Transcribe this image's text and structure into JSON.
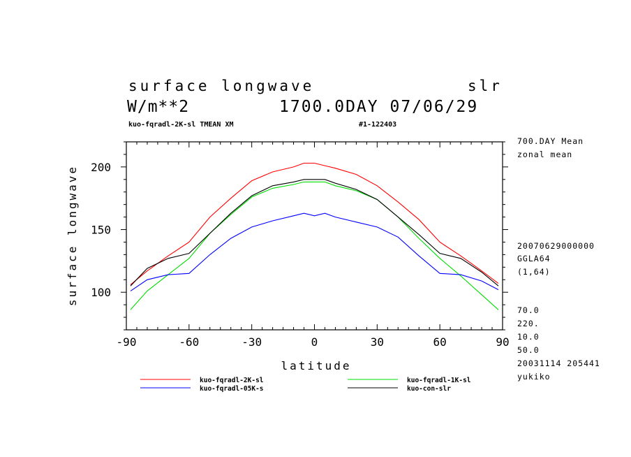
{
  "header": {
    "title_left": "surface longwave",
    "title_right": "slr",
    "units": "W/m**2",
    "date_line": "1700.0DAY 07/06/29",
    "subtitle_left": "kuo-fqradl-2K-sl TMEAN XM",
    "subtitle_right": "#1-122403"
  },
  "side_info": {
    "line1": "700.DAY Mean",
    "line2": "zonal mean",
    "line3": "20070629000000",
    "line4": "GGLA64",
    "line5": "(1,64)",
    "line6": "70.0",
    "line7": "220.",
    "line8": "10.0",
    "line9": "50.0",
    "line10": "20031114 205441",
    "line11": "yukiko"
  },
  "chart_data": {
    "type": "line",
    "title": "surface longwave",
    "xlabel": "latitude",
    "ylabel": "surface longwave",
    "xlim": [
      -90,
      90
    ],
    "ylim": [
      70,
      220
    ],
    "xticks": [
      -90,
      -60,
      -30,
      0,
      30,
      60,
      90
    ],
    "xtick_labels": [
      "-90",
      "-60",
      "-30",
      "0",
      "30",
      "60",
      "90"
    ],
    "yticks": [
      100,
      150,
      200
    ],
    "ytick_labels": [
      "100",
      "150",
      "200"
    ],
    "x": [
      -88,
      -80,
      -70,
      -60,
      -50,
      -40,
      -30,
      -20,
      -10,
      -5,
      0,
      5,
      10,
      20,
      30,
      40,
      50,
      60,
      70,
      80,
      88
    ],
    "series": [
      {
        "name": "kuo-fqradl-2K-sl",
        "color": "#ff0000",
        "values": [
          106,
          117,
          129,
          140,
          160,
          175,
          189,
          196,
          200,
          203,
          203,
          201,
          199,
          194,
          185,
          172,
          158,
          140,
          129,
          117,
          107
        ]
      },
      {
        "name": "kuo-fqradl-1K-sl",
        "color": "#00dd00",
        "values": [
          86,
          101,
          114,
          127,
          147,
          162,
          176,
          183,
          186,
          188,
          188,
          188,
          185,
          181,
          174,
          160,
          143,
          127,
          113,
          98,
          86
        ]
      },
      {
        "name": "kuo-fqradl-05K-s",
        "color": "#0000ff",
        "values": [
          101,
          110,
          114,
          115,
          130,
          143,
          152,
          157,
          161,
          163,
          161,
          163,
          160,
          156,
          152,
          144,
          129,
          115,
          114,
          109,
          102
        ]
      },
      {
        "name": "kuo-con-slr",
        "color": "#000000",
        "values": [
          105,
          119,
          127,
          131,
          147,
          163,
          177,
          185,
          188,
          190,
          190,
          190,
          187,
          182,
          174,
          160,
          146,
          131,
          127,
          116,
          105
        ]
      }
    ],
    "legend_position": "bottom",
    "grid": false
  }
}
